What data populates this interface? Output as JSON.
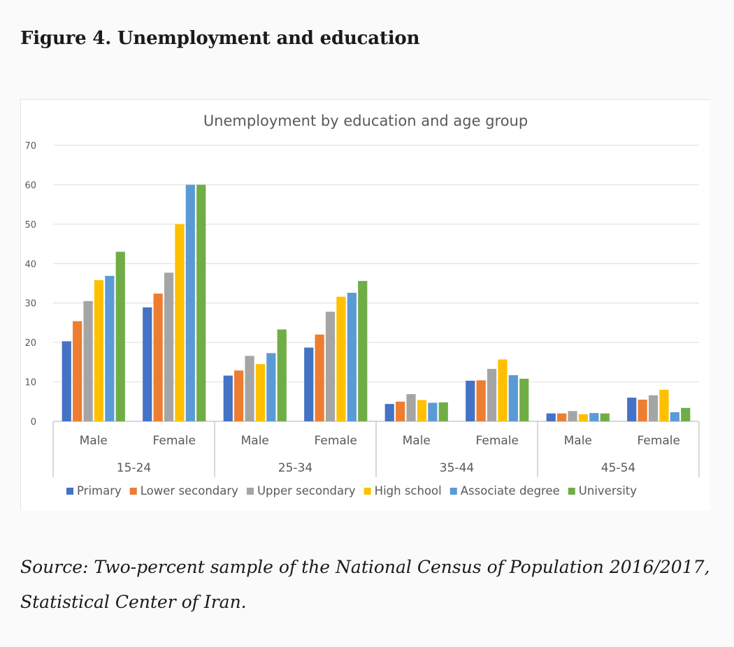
{
  "figure": {
    "heading": "Figure 4. Unemployment and education",
    "source": "Source: Two-percent sample of the National Census of Population 2016/2017, Statistical Center of Iran."
  },
  "chart_data": {
    "type": "bar",
    "title": "Unemployment by education and age group",
    "xlabel": "",
    "ylabel": "",
    "ylim": [
      0,
      70
    ],
    "yticks": [
      0,
      10,
      20,
      30,
      40,
      50,
      60,
      70
    ],
    "grid": true,
    "legend_position": "bottom",
    "groups": [
      "15-24",
      "25-34",
      "35-44",
      "45-54"
    ],
    "subcategories": [
      "Male",
      "Female"
    ],
    "categories": [
      "15-24 Male",
      "15-24 Female",
      "25-34 Male",
      "25-34 Female",
      "35-44 Male",
      "35-44 Female",
      "45-54 Male",
      "45-54 Female"
    ],
    "series": [
      {
        "name": "Primary",
        "color": "#4472c4",
        "values": [
          20.3,
          28.9,
          11.6,
          18.7,
          4.4,
          10.3,
          2.0,
          6.0
        ]
      },
      {
        "name": "Lower secondary",
        "color": "#ed7d31",
        "values": [
          25.4,
          32.4,
          12.9,
          22.0,
          5.0,
          10.4,
          2.0,
          5.5
        ]
      },
      {
        "name": "Upper secondary",
        "color": "#a5a5a5",
        "values": [
          30.5,
          37.7,
          16.6,
          27.8,
          6.9,
          13.3,
          2.6,
          6.6
        ]
      },
      {
        "name": "High school",
        "color": "#ffc000",
        "values": [
          35.8,
          50.0,
          14.5,
          31.6,
          5.4,
          15.7,
          1.8,
          8.0
        ]
      },
      {
        "name": "Associate degree",
        "color": "#5b9bd5",
        "values": [
          36.9,
          60.0,
          17.3,
          32.6,
          4.7,
          11.7,
          2.1,
          2.3
        ]
      },
      {
        "name": "University",
        "color": "#70ad47",
        "values": [
          43.0,
          60.0,
          23.3,
          35.6,
          4.8,
          10.8,
          2.0,
          3.4
        ]
      }
    ]
  }
}
